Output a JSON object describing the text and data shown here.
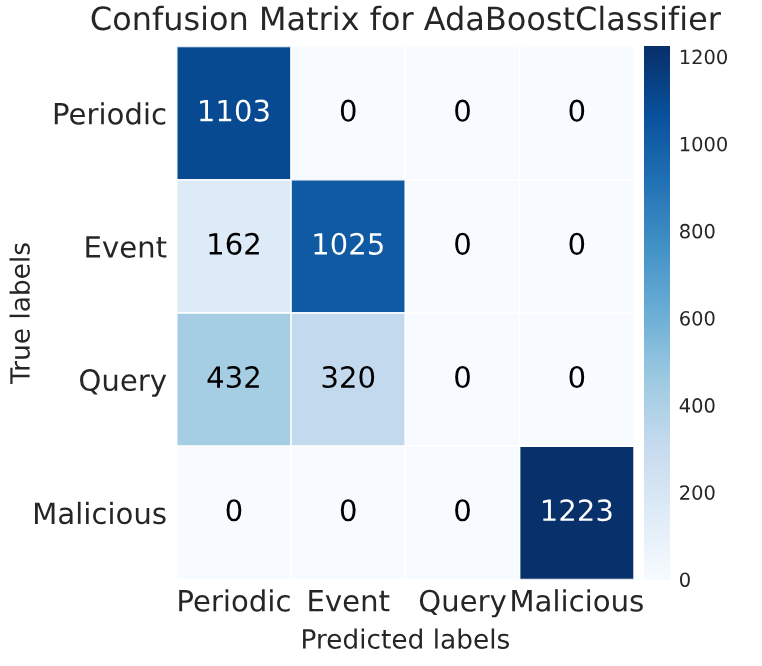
{
  "chart_data": {
    "type": "heatmap",
    "title": "Confusion Matrix for AdaBoostClassifier",
    "xlabel": "Predicted labels",
    "ylabel": "True labels",
    "categories": [
      "Periodic",
      "Event",
      "Query",
      "Malicious"
    ],
    "y_categories": [
      "Periodic",
      "Event",
      "Query",
      "Malicious"
    ],
    "cells": [
      [
        1103,
        0,
        0,
        0
      ],
      [
        162,
        1025,
        0,
        0
      ],
      [
        432,
        320,
        0,
        0
      ],
      [
        0,
        0,
        0,
        1223
      ]
    ],
    "data_labels": true,
    "clim": [
      0,
      1223
    ],
    "cticks": [
      0,
      200,
      400,
      600,
      800,
      1000,
      1200
    ]
  }
}
